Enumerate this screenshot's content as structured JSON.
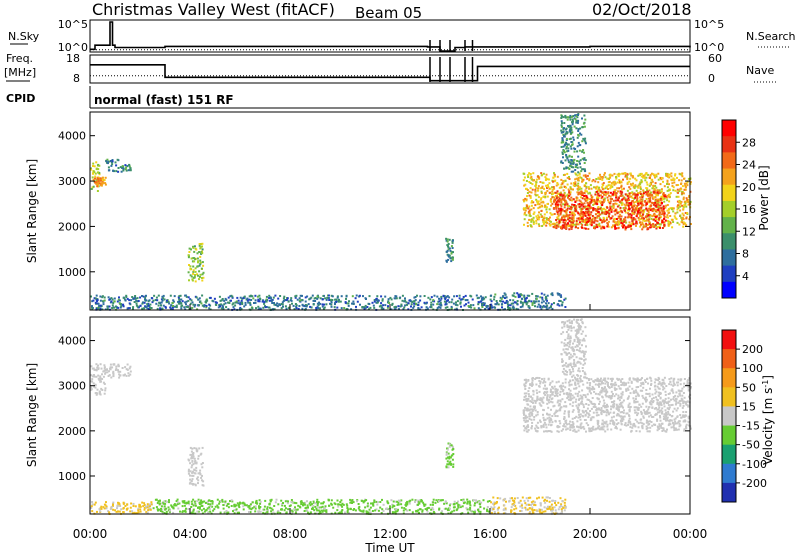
{
  "header": {
    "title": "Christmas Valley West (fitACF)",
    "beam": "Beam 05",
    "date": "02/Oct/2018"
  },
  "noise_panel": {
    "left_label": "N.Sky",
    "right_label": "N.Search",
    "left_ticks": [
      "10^5",
      "10^0"
    ],
    "right_ticks": [
      "10^5",
      "10^0"
    ]
  },
  "freq_panel": {
    "left_label_1": "Freq.",
    "left_label_2": "[MHz]",
    "left_ticks": [
      "18",
      "8"
    ],
    "right_ticks": [
      "60",
      "0"
    ],
    "right_label": "Nave"
  },
  "cpid": {
    "label": "CPID",
    "mode": "normal (fast) 151 RF"
  },
  "x_axis": {
    "label": "Time UT",
    "ticks": [
      "00:00",
      "04:00",
      "08:00",
      "12:00",
      "16:00",
      "20:00",
      "00:00"
    ]
  },
  "chart_data": [
    {
      "type": "heatmap",
      "name": "power",
      "xlabel": "Time UT",
      "ylabel": "Slant Range [km]",
      "xlim": [
        0,
        24
      ],
      "ylim": [
        180,
        4500
      ],
      "yticks": [
        "1000",
        "2000",
        "3000",
        "4000"
      ],
      "colorbar": {
        "label": "Power [dB]",
        "ticks": [
          "4",
          "8",
          "12",
          "16",
          "20",
          "24",
          "28"
        ],
        "range": [
          0,
          32
        ],
        "colors": [
          "#0000ff",
          "#1f3fc0",
          "#2e6e9e",
          "#3b8f6b",
          "#62b24a",
          "#a4cf2a",
          "#f2d31a",
          "#f4a21c",
          "#f26a18",
          "#e83214",
          "#ff0000"
        ]
      },
      "regions": [
        {
          "t": [
            0.0,
            0.35
          ],
          "r": [
            2800,
            3500
          ],
          "level": 16
        },
        {
          "t": [
            0.1,
            0.6
          ],
          "r": [
            2900,
            3100
          ],
          "level": 22
        },
        {
          "t": [
            0.6,
            1.6
          ],
          "r": [
            3200,
            3500
          ],
          "level": 9
        },
        {
          "t": [
            3.9,
            4.5
          ],
          "r": [
            800,
            1650
          ],
          "level": 15
        },
        {
          "t": [
            14.2,
            14.5
          ],
          "r": [
            1200,
            1750
          ],
          "level": 10
        },
        {
          "t": [
            17.3,
            24.0
          ],
          "r": [
            2000,
            3200
          ],
          "level": 20
        },
        {
          "t": [
            18.5,
            23.0
          ],
          "r": [
            1950,
            2800
          ],
          "level": 27
        },
        {
          "t": [
            18.8,
            19.8
          ],
          "r": [
            3200,
            4500
          ],
          "level": 10
        },
        {
          "t": [
            0.0,
            16.0
          ],
          "r": [
            180,
            500
          ],
          "level": 8
        },
        {
          "t": [
            16.0,
            19.0
          ],
          "r": [
            180,
            550
          ],
          "level": 8
        }
      ]
    },
    {
      "type": "heatmap",
      "name": "velocity",
      "xlabel": "Time UT",
      "ylabel": "Slant Range [km]",
      "xlim": [
        0,
        24
      ],
      "ylim": [
        180,
        4500
      ],
      "yticks": [
        "1000",
        "2000",
        "3000",
        "4000"
      ],
      "colorbar": {
        "label": "Velocity [m s-1]",
        "ticks": [
          "200",
          "100",
          "50",
          "15",
          "-15",
          "-50",
          "-100",
          "-200"
        ],
        "range": [
          -250,
          250
        ],
        "colors": [
          "#2030b0",
          "#2f7bd0",
          "#1aa070",
          "#66cc33",
          "#c8c8c8",
          "#f0c020",
          "#f59a1a",
          "#f06018",
          "#f21010"
        ]
      },
      "regions": [
        {
          "t": [
            0.0,
            0.6
          ],
          "r": [
            2800,
            3500
          ],
          "level": 0
        },
        {
          "t": [
            0.6,
            1.6
          ],
          "r": [
            3200,
            3500
          ],
          "level": 0
        },
        {
          "t": [
            3.9,
            4.5
          ],
          "r": [
            800,
            1650
          ],
          "level": 0
        },
        {
          "t": [
            14.2,
            14.5
          ],
          "r": [
            1200,
            1750
          ],
          "level": -40
        },
        {
          "t": [
            17.3,
            24.0
          ],
          "r": [
            2000,
            3200
          ],
          "level": 0
        },
        {
          "t": [
            18.8,
            19.8
          ],
          "r": [
            3200,
            4500
          ],
          "level": 0
        },
        {
          "t": [
            2.5,
            16.0
          ],
          "r": [
            180,
            500
          ],
          "level": -40
        },
        {
          "t": [
            0.0,
            2.5
          ],
          "r": [
            180,
            450
          ],
          "level": 40
        },
        {
          "t": [
            16.0,
            19.0
          ],
          "r": [
            180,
            550
          ],
          "level": 30
        }
      ]
    },
    {
      "type": "line",
      "name": "noise",
      "series": [
        {
          "name": "N.Sky",
          "x": [
            0,
            0.2,
            0.8,
            0.9,
            1.0,
            3.0,
            13.5,
            14.0,
            14.6,
            15.0,
            20.0,
            24.0
          ],
          "values": [
            0.3,
            1.0,
            5.0,
            1.0,
            0.6,
            0.8,
            0.7,
            0.0,
            0.6,
            0.7,
            0.8,
            0.6
          ]
        },
        {
          "name": "N.Search",
          "x": [
            0,
            24
          ],
          "values": [
            0.2,
            0.2
          ]
        }
      ]
    },
    {
      "type": "line",
      "name": "frequency",
      "series": [
        {
          "name": "Freq",
          "x": [
            0,
            3.0,
            3.0,
            13.6,
            13.6,
            15.5,
            15.5,
            24
          ],
          "values": [
            14.6,
            14.6,
            9.8,
            9.8,
            8.5,
            8.5,
            14.0,
            14.0
          ]
        },
        {
          "name": "Nave",
          "x": [
            0,
            24
          ],
          "values": [
            0.36,
            0.36
          ]
        }
      ]
    }
  ]
}
